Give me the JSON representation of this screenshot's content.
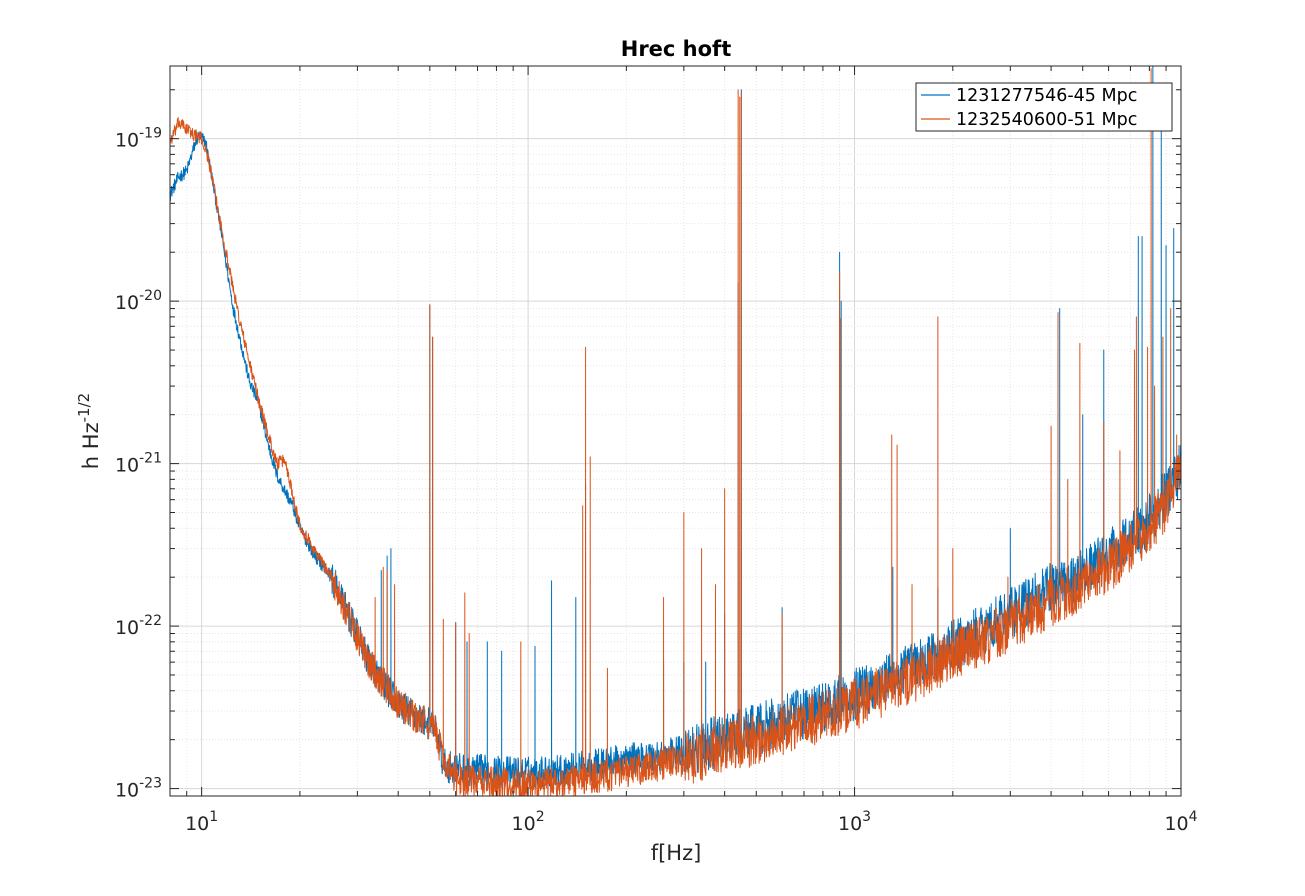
{
  "chart_data": {
    "type": "line",
    "title": "Hrec hoft",
    "xlabel": "f[Hz]",
    "ylabel_main": "h Hz",
    "ylabel_sup": "-1/2",
    "xscale": "log",
    "yscale": "log",
    "xlim": [
      8,
      10000
    ],
    "ylim": [
      9e-24,
      2.8e-19
    ],
    "grid": true,
    "minor_grid": true,
    "legend_position": "top-right",
    "x_ticks": [
      {
        "base": "10",
        "exp": "1",
        "value": 10
      },
      {
        "base": "10",
        "exp": "2",
        "value": 100
      },
      {
        "base": "10",
        "exp": "3",
        "value": 1000
      },
      {
        "base": "10",
        "exp": "4",
        "value": 10000
      }
    ],
    "y_ticks": [
      {
        "base": "10",
        "exp": "-19",
        "value": 1e-19
      },
      {
        "base": "10",
        "exp": "-20",
        "value": 1e-20
      },
      {
        "base": "10",
        "exp": "-21",
        "value": 1e-21
      },
      {
        "base": "10",
        "exp": "-22",
        "value": 1e-22
      },
      {
        "base": "10",
        "exp": "-23",
        "value": 1e-23
      }
    ],
    "series": [
      {
        "name": "1231277546-45 Mpc",
        "color": "#0072BD",
        "baseline": [
          [
            8,
            4.5e-20
          ],
          [
            8.5,
            5.8e-20
          ],
          [
            9.0,
            6.3e-20
          ],
          [
            9.5,
            9e-20
          ],
          [
            9.8,
            1.05e-19
          ],
          [
            10.3,
            9.5e-20
          ],
          [
            10.8,
            5.5e-20
          ],
          [
            11.5,
            2.6e-20
          ],
          [
            12.5,
            9e-21
          ],
          [
            14,
            3.2e-21
          ],
          [
            15,
            2.3e-21
          ],
          [
            16,
            1.3e-21
          ],
          [
            17,
            8.5e-22
          ],
          [
            18,
            6.8e-22
          ],
          [
            19,
            5.5e-22
          ],
          [
            20,
            4e-22
          ],
          [
            22,
            2.8e-22
          ],
          [
            25,
            2e-22
          ],
          [
            28,
            1.2e-22
          ],
          [
            32,
            6.5e-23
          ],
          [
            35,
            4.8e-23
          ],
          [
            40,
            3.3e-23
          ],
          [
            45,
            2.8e-23
          ],
          [
            48,
            2.6e-23
          ],
          [
            52,
            2.4e-23
          ],
          [
            55,
            1.4e-23
          ],
          [
            60,
            1.32e-23
          ],
          [
            70,
            1.3e-23
          ],
          [
            80,
            1.27e-23
          ],
          [
            100,
            1.25e-23
          ],
          [
            130,
            1.3e-23
          ],
          [
            160,
            1.4e-23
          ],
          [
            200,
            1.5e-23
          ],
          [
            250,
            1.6e-23
          ],
          [
            300,
            1.7e-23
          ],
          [
            400,
            2e-23
          ],
          [
            500,
            2.3e-23
          ],
          [
            700,
            2.9e-23
          ],
          [
            1000,
            3.8e-23
          ],
          [
            1500,
            5.5e-23
          ],
          [
            2000,
            7.5e-23
          ],
          [
            3000,
            1.2e-22
          ],
          [
            4000,
            1.7e-22
          ],
          [
            5000,
            2.1e-22
          ],
          [
            6000,
            2.7e-22
          ],
          [
            7000,
            3.5e-22
          ],
          [
            8000,
            4.6e-22
          ],
          [
            9000,
            6.5e-22
          ],
          [
            10000,
            9.5e-22
          ]
        ],
        "spikes": [
          [
            35.5,
            2.2e-22
          ],
          [
            37,
            2.7e-22
          ],
          [
            38,
            3e-22
          ],
          [
            50,
            9.5e-21
          ],
          [
            51,
            6e-21
          ],
          [
            60,
            1.05e-22
          ],
          [
            65,
            8e-23
          ],
          [
            75,
            8e-23
          ],
          [
            83,
            7e-23
          ],
          [
            105,
            7.5e-23
          ],
          [
            118,
            1.9e-22
          ],
          [
            150,
            7.5e-22
          ],
          [
            140,
            1.5e-22
          ],
          [
            150,
            3e-22
          ],
          [
            260,
            6e-23
          ],
          [
            300,
            6e-23
          ],
          [
            350,
            6e-23
          ],
          [
            400,
            1.2e-22
          ],
          [
            440,
            1.3e-20
          ],
          [
            450,
            2e-19
          ],
          [
            600,
            1.3e-22
          ],
          [
            900,
            2e-20
          ],
          [
            910,
            1e-20
          ],
          [
            1310,
            2.3e-22
          ],
          [
            1800,
            1.7e-22
          ],
          [
            3000,
            4e-22
          ],
          [
            4250,
            9e-21
          ],
          [
            5000,
            2e-21
          ],
          [
            5800,
            5e-21
          ],
          [
            7400,
            2.5e-20
          ],
          [
            7600,
            2.5e-20
          ],
          [
            8200,
            2.8e-19
          ],
          [
            8700,
            1.3e-19
          ],
          [
            9000,
            2.2e-20
          ],
          [
            9500,
            2.8e-20
          ],
          [
            10000,
            6e-20
          ]
        ]
      },
      {
        "name": "1232540600-51 Mpc",
        "color": "#D95319",
        "baseline": [
          [
            8,
            9.5e-20
          ],
          [
            8.5,
            1.25e-19
          ],
          [
            9.0,
            1.15e-19
          ],
          [
            9.5,
            1.05e-19
          ],
          [
            10,
            1e-19
          ],
          [
            10.5,
            7.5e-20
          ],
          [
            11,
            4.5e-20
          ],
          [
            12,
            1.8e-20
          ],
          [
            13,
            8e-21
          ],
          [
            14,
            4.2e-21
          ],
          [
            15,
            2.4e-21
          ],
          [
            16,
            1.5e-21
          ],
          [
            17,
            1e-21
          ],
          [
            18,
            1.05e-21
          ],
          [
            19,
            6.5e-22
          ],
          [
            20,
            4.2e-22
          ],
          [
            22,
            3e-22
          ],
          [
            25,
            2e-22
          ],
          [
            28,
            1.2e-22
          ],
          [
            32,
            6.3e-23
          ],
          [
            35,
            4.8e-23
          ],
          [
            40,
            3.4e-23
          ],
          [
            45,
            2.7e-23
          ],
          [
            48,
            2.6e-23
          ],
          [
            52,
            2.3e-23
          ],
          [
            55,
            1.5e-23
          ],
          [
            60,
            1.15e-23
          ],
          [
            70,
            1.1e-23
          ],
          [
            80,
            1.08e-23
          ],
          [
            100,
            1.05e-23
          ],
          [
            130,
            1.1e-23
          ],
          [
            160,
            1.18e-23
          ],
          [
            200,
            1.25e-23
          ],
          [
            250,
            1.4e-23
          ],
          [
            300,
            1.5e-23
          ],
          [
            400,
            1.75e-23
          ],
          [
            500,
            2e-23
          ],
          [
            700,
            2.5e-23
          ],
          [
            1000,
            3.3e-23
          ],
          [
            1500,
            4.8e-23
          ],
          [
            2000,
            6.5e-23
          ],
          [
            3000,
            1e-22
          ],
          [
            4000,
            1.4e-22
          ],
          [
            5000,
            1.8e-22
          ],
          [
            6000,
            2.3e-22
          ],
          [
            7000,
            3e-22
          ],
          [
            8000,
            3.9e-22
          ],
          [
            9000,
            5.5e-22
          ],
          [
            10000,
            9e-22
          ]
        ],
        "spikes": [
          [
            34,
            1.5e-22
          ],
          [
            36,
            2.3e-22
          ],
          [
            37,
            2.2e-22
          ],
          [
            39,
            1.8e-22
          ],
          [
            50,
            9.5e-21
          ],
          [
            51,
            6e-21
          ],
          [
            55,
            1.1e-22
          ],
          [
            60,
            1.05e-22
          ],
          [
            64,
            1.6e-22
          ],
          [
            66,
            9e-23
          ],
          [
            95,
            8e-23
          ],
          [
            150,
            5.2e-21
          ],
          [
            147,
            5.5e-22
          ],
          [
            155,
            1.1e-21
          ],
          [
            175,
            5.5e-23
          ],
          [
            260,
            1.5e-22
          ],
          [
            300,
            5e-22
          ],
          [
            340,
            3e-22
          ],
          [
            375,
            1.8e-22
          ],
          [
            400,
            7e-22
          ],
          [
            440,
            2e-19
          ],
          [
            445,
            1.8e-19
          ],
          [
            450,
            1.9e-19
          ],
          [
            600,
            1.2e-22
          ],
          [
            900,
            1.5e-20
          ],
          [
            905,
            7.8e-21
          ],
          [
            1300,
            1.5e-21
          ],
          [
            1350,
            1.3e-21
          ],
          [
            1500,
            1.8e-22
          ],
          [
            1800,
            8e-21
          ],
          [
            2000,
            3e-22
          ],
          [
            2950,
            2e-22
          ],
          [
            4000,
            1.7e-21
          ],
          [
            4200,
            8.5e-21
          ],
          [
            4500,
            8e-22
          ],
          [
            4900,
            5.5e-21
          ],
          [
            5800,
            1.8e-21
          ],
          [
            6500,
            1.2e-21
          ],
          [
            7200,
            5e-21
          ],
          [
            7300,
            8e-21
          ],
          [
            7900,
            5.2e-21
          ],
          [
            8100,
            2.7e-19
          ],
          [
            8300,
            3e-21
          ],
          [
            8800,
            6e-21
          ],
          [
            9300,
            9e-21
          ],
          [
            9700,
            1.5e-21
          ],
          [
            10000,
            7e-20
          ]
        ]
      }
    ]
  }
}
